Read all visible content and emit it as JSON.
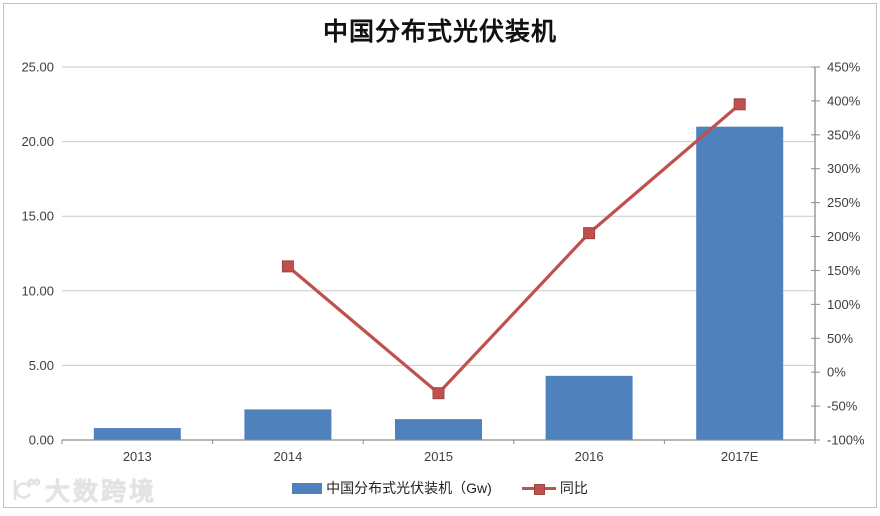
{
  "title": "中国分布式光伏装机",
  "legend": {
    "items": [
      {
        "label": "中国分布式光伏装机（Gw)",
        "marker": "bar-swatch",
        "color": "#4f81bd"
      },
      {
        "label": "同比",
        "marker": "line-marker",
        "color": "#c0504d"
      }
    ]
  },
  "watermark": {
    "text": "大数跨境"
  },
  "colors": {
    "bar": "#4f81bd",
    "line": "#c0504d",
    "line_marker_border": "#9c4441",
    "grid": "#c8c8c8",
    "axis": "#8c8c8c",
    "tick_text": "#3f3f3f",
    "title_text": "#111111",
    "border": "#c3c3c3",
    "watermark": "#e3e3e3"
  },
  "chart_data": {
    "type": "bar",
    "subtype": "bar+line combo with dual y-axes",
    "title": "中国分布式光伏装机",
    "categories": [
      "2013",
      "2014",
      "2015",
      "2016",
      "2017E"
    ],
    "series": [
      {
        "name": "中国分布式光伏装机（Gw)",
        "type": "bar",
        "axis": "left",
        "color": "#4f81bd",
        "values": [
          0.8,
          2.05,
          1.4,
          4.3,
          21.0
        ]
      },
      {
        "name": "同比",
        "type": "line",
        "axis": "right",
        "color": "#c0504d",
        "unit": "%",
        "values": [
          null,
          156,
          -31,
          205,
          395
        ]
      }
    ],
    "left_axis": {
      "min": 0,
      "max": 25,
      "step": 5,
      "tick_labels": [
        "0.00",
        "5.00",
        "10.00",
        "15.00",
        "20.00",
        "25.00"
      ]
    },
    "right_axis": {
      "min": -100,
      "max": 450,
      "step": 50,
      "tick_labels": [
        "-100%",
        "-50%",
        "0%",
        "50%",
        "100%",
        "150%",
        "200%",
        "250%",
        "300%",
        "350%",
        "400%",
        "450%"
      ]
    },
    "grid": true,
    "legend_position": "bottom"
  }
}
